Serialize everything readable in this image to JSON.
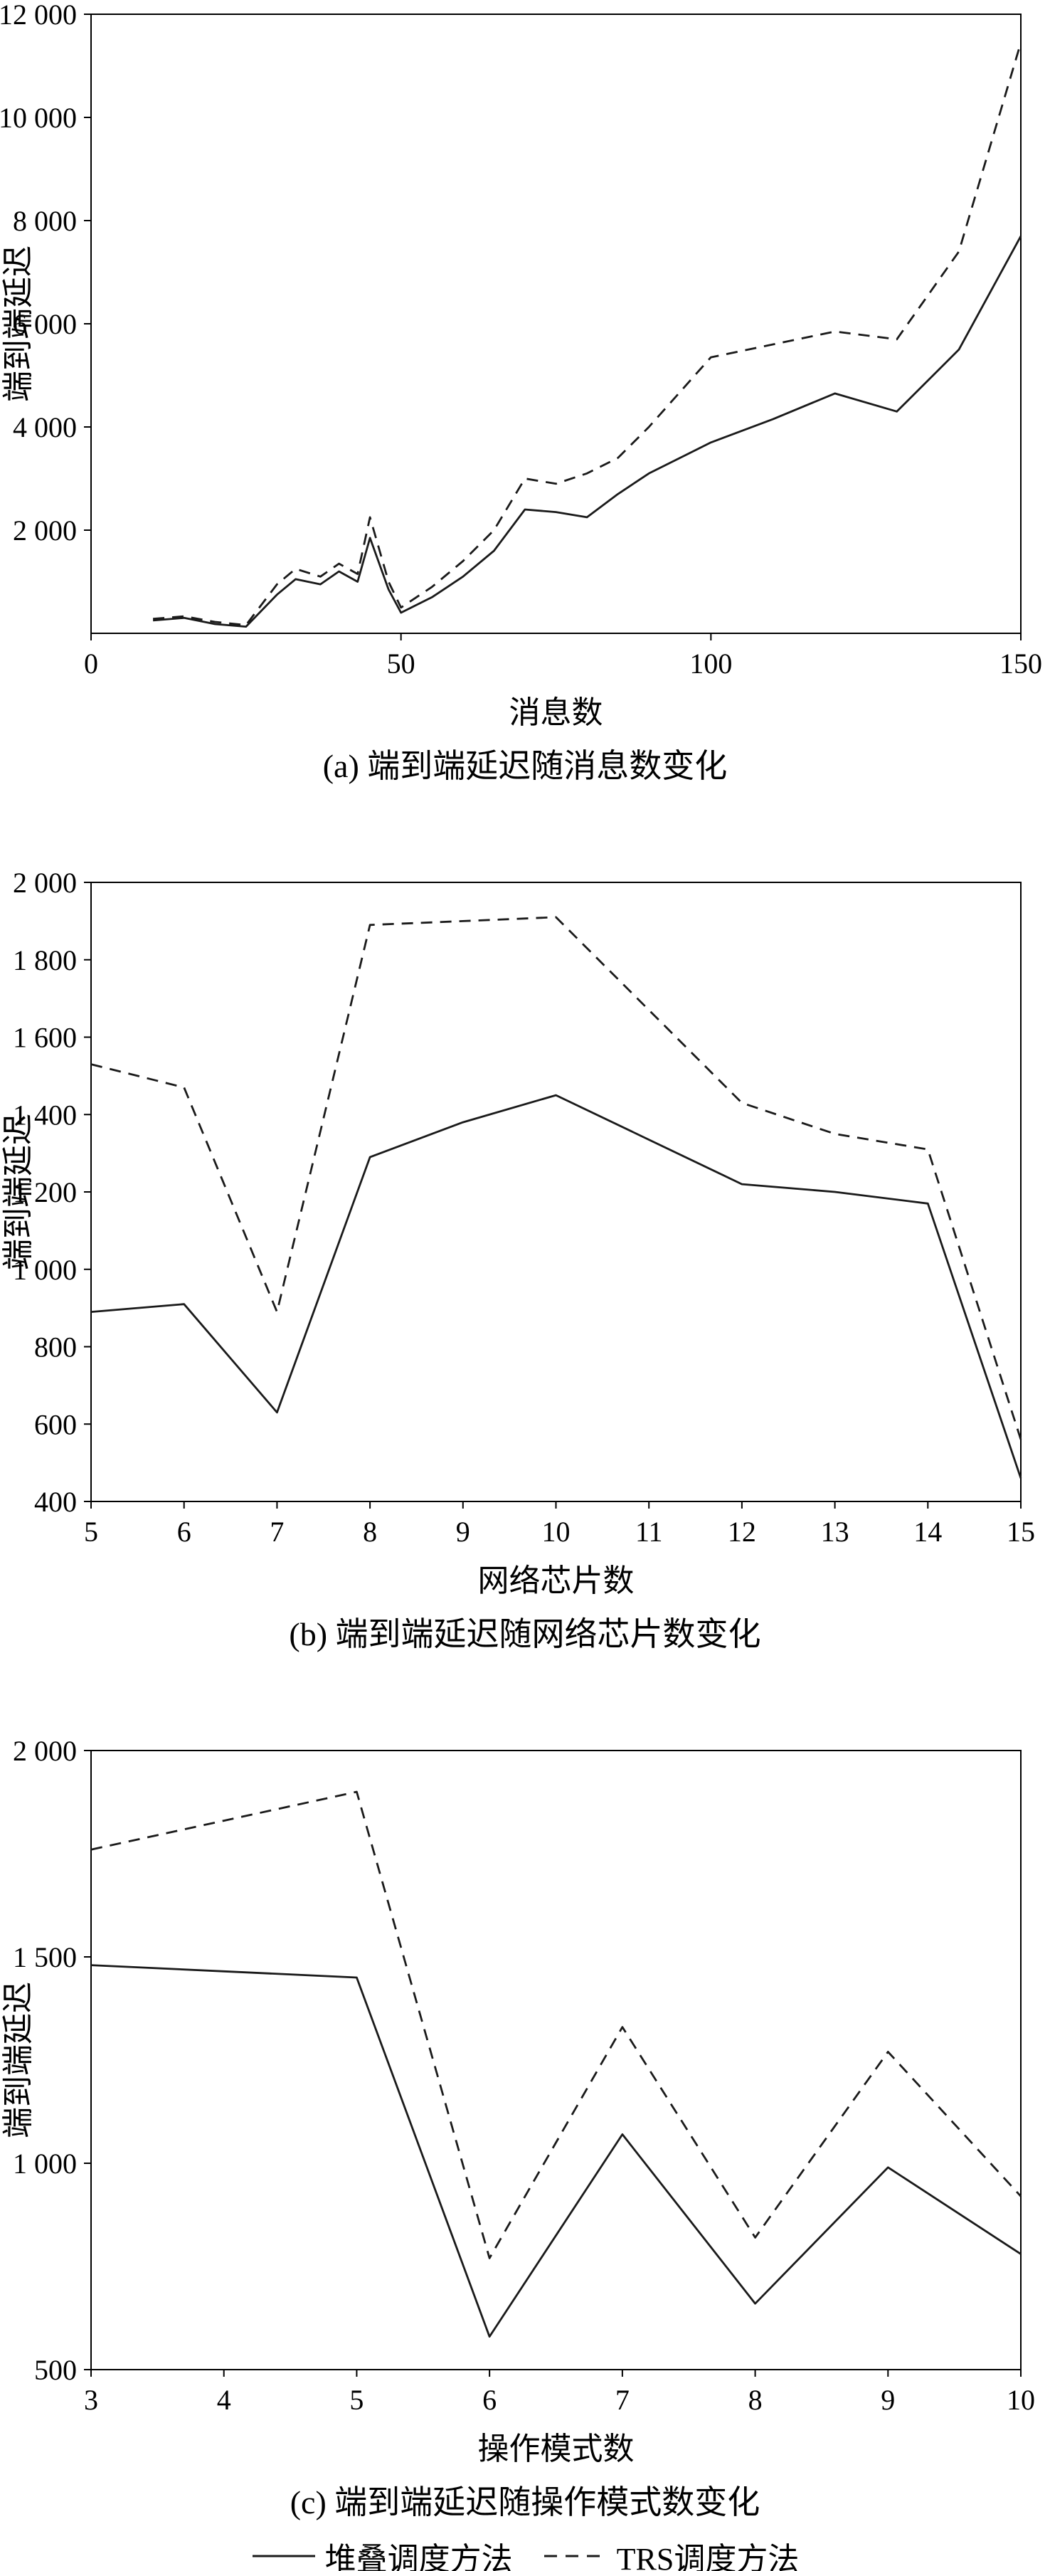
{
  "page": {
    "background": "#ffffff",
    "line_color": "#1a1a1a"
  },
  "legend": {
    "solid_label": "堆叠调度方法",
    "dashed_label": "TRS调度方法"
  },
  "chart_data": [
    {
      "type": "line",
      "caption": "(a) 端到端延迟随消息数变化",
      "xlabel": "消息数",
      "ylabel": "端到端延迟",
      "xlim": [
        0,
        150
      ],
      "ylim": [
        0,
        12000
      ],
      "grid": false,
      "legend_position": "bottom-shared",
      "xticks": [
        {
          "v": 0,
          "label": "0"
        },
        {
          "v": 50,
          "label": "50"
        },
        {
          "v": 100,
          "label": "100"
        },
        {
          "v": 150,
          "label": "150"
        }
      ],
      "yticks": [
        {
          "v": 2000,
          "label": "2 000"
        },
        {
          "v": 4000,
          "label": "4 000"
        },
        {
          "v": 6000,
          "label": "6 000"
        },
        {
          "v": 8000,
          "label": "8 000"
        },
        {
          "v": 10000,
          "label": "10 000"
        },
        {
          "v": 12000,
          "label": "12 000"
        }
      ],
      "series": [
        {
          "name": "堆叠调度方法",
          "line_style": "solid",
          "x": [
            10,
            15,
            20,
            25,
            30,
            33,
            37,
            40,
            43,
            45,
            48,
            50,
            55,
            60,
            65,
            70,
            75,
            80,
            85,
            90,
            100,
            110,
            120,
            130,
            140,
            150
          ],
          "y": [
            250,
            300,
            180,
            130,
            750,
            1050,
            950,
            1200,
            1000,
            1850,
            850,
            400,
            700,
            1100,
            1600,
            2400,
            2350,
            2250,
            2700,
            3100,
            3700,
            4150,
            4650,
            4300,
            5500,
            7700
          ]
        },
        {
          "name": "TRS调度方法",
          "line_style": "dashed",
          "x": [
            10,
            15,
            20,
            25,
            30,
            33,
            37,
            40,
            43,
            45,
            48,
            50,
            55,
            60,
            65,
            70,
            75,
            80,
            85,
            90,
            100,
            110,
            120,
            130,
            140,
            150
          ],
          "y": [
            280,
            330,
            220,
            160,
            950,
            1250,
            1100,
            1350,
            1150,
            2250,
            1000,
            500,
            900,
            1400,
            2000,
            3000,
            2900,
            3100,
            3400,
            4000,
            5350,
            5600,
            5850,
            5700,
            7400,
            11450
          ]
        }
      ]
    },
    {
      "type": "line",
      "caption": "(b) 端到端延迟随网络芯片数变化",
      "xlabel": "网络芯片数",
      "ylabel": "端到端延迟",
      "xlim": [
        5,
        15
      ],
      "ylim": [
        400,
        2000
      ],
      "grid": false,
      "legend_position": "bottom-shared",
      "xticks": [
        {
          "v": 5,
          "label": "5"
        },
        {
          "v": 6,
          "label": "6"
        },
        {
          "v": 7,
          "label": "7"
        },
        {
          "v": 8,
          "label": "8"
        },
        {
          "v": 9,
          "label": "9"
        },
        {
          "v": 10,
          "label": "10"
        },
        {
          "v": 11,
          "label": "11"
        },
        {
          "v": 12,
          "label": "12"
        },
        {
          "v": 13,
          "label": "13"
        },
        {
          "v": 14,
          "label": "14"
        },
        {
          "v": 15,
          "label": "15"
        }
      ],
      "yticks": [
        {
          "v": 400,
          "label": "400"
        },
        {
          "v": 600,
          "label": "600"
        },
        {
          "v": 800,
          "label": "800"
        },
        {
          "v": 1000,
          "label": "1 000"
        },
        {
          "v": 1200,
          "label": "1 200"
        },
        {
          "v": 1400,
          "label": "1 400"
        },
        {
          "v": 1600,
          "label": "1 600"
        },
        {
          "v": 1800,
          "label": "1 800"
        },
        {
          "v": 2000,
          "label": "2 000"
        }
      ],
      "series": [
        {
          "name": "堆叠调度方法",
          "line_style": "solid",
          "x": [
            5,
            6,
            7,
            8,
            9,
            10,
            11,
            12,
            13,
            14,
            15
          ],
          "y": [
            890,
            910,
            630,
            1290,
            1380,
            1450,
            1335,
            1220,
            1200,
            1170,
            460
          ]
        },
        {
          "name": "TRS调度方法",
          "line_style": "dashed",
          "x": [
            5,
            6,
            7,
            8,
            9,
            10,
            11,
            12,
            13,
            14,
            15
          ],
          "y": [
            1530,
            1470,
            890,
            1890,
            1900,
            1910,
            1670,
            1430,
            1350,
            1310,
            560
          ]
        }
      ]
    },
    {
      "type": "line",
      "caption": "(c) 端到端延迟随操作模式数变化",
      "xlabel": "操作模式数",
      "ylabel": "端到端延迟",
      "xlim": [
        3,
        10
      ],
      "ylim": [
        500,
        2000
      ],
      "grid": false,
      "legend_position": "bottom-shared",
      "xticks": [
        {
          "v": 3,
          "label": "3"
        },
        {
          "v": 4,
          "label": "4"
        },
        {
          "v": 5,
          "label": "5"
        },
        {
          "v": 6,
          "label": "6"
        },
        {
          "v": 7,
          "label": "7"
        },
        {
          "v": 8,
          "label": "8"
        },
        {
          "v": 9,
          "label": "9"
        },
        {
          "v": 10,
          "label": "10"
        }
      ],
      "yticks": [
        {
          "v": 500,
          "label": "500"
        },
        {
          "v": 1000,
          "label": "1 000"
        },
        {
          "v": 1500,
          "label": "1 500"
        },
        {
          "v": 2000,
          "label": "2 000"
        }
      ],
      "series": [
        {
          "name": "堆叠调度方法",
          "line_style": "solid",
          "x": [
            3,
            4,
            5,
            6,
            7,
            8,
            9,
            10
          ],
          "y": [
            1480,
            1465,
            1450,
            580,
            1070,
            660,
            990,
            780
          ]
        },
        {
          "name": "TRS调度方法",
          "line_style": "dashed",
          "x": [
            3,
            4,
            5,
            6,
            7,
            8,
            9,
            10
          ],
          "y": [
            1760,
            1830,
            1900,
            770,
            1330,
            820,
            1270,
            920
          ]
        }
      ]
    }
  ]
}
